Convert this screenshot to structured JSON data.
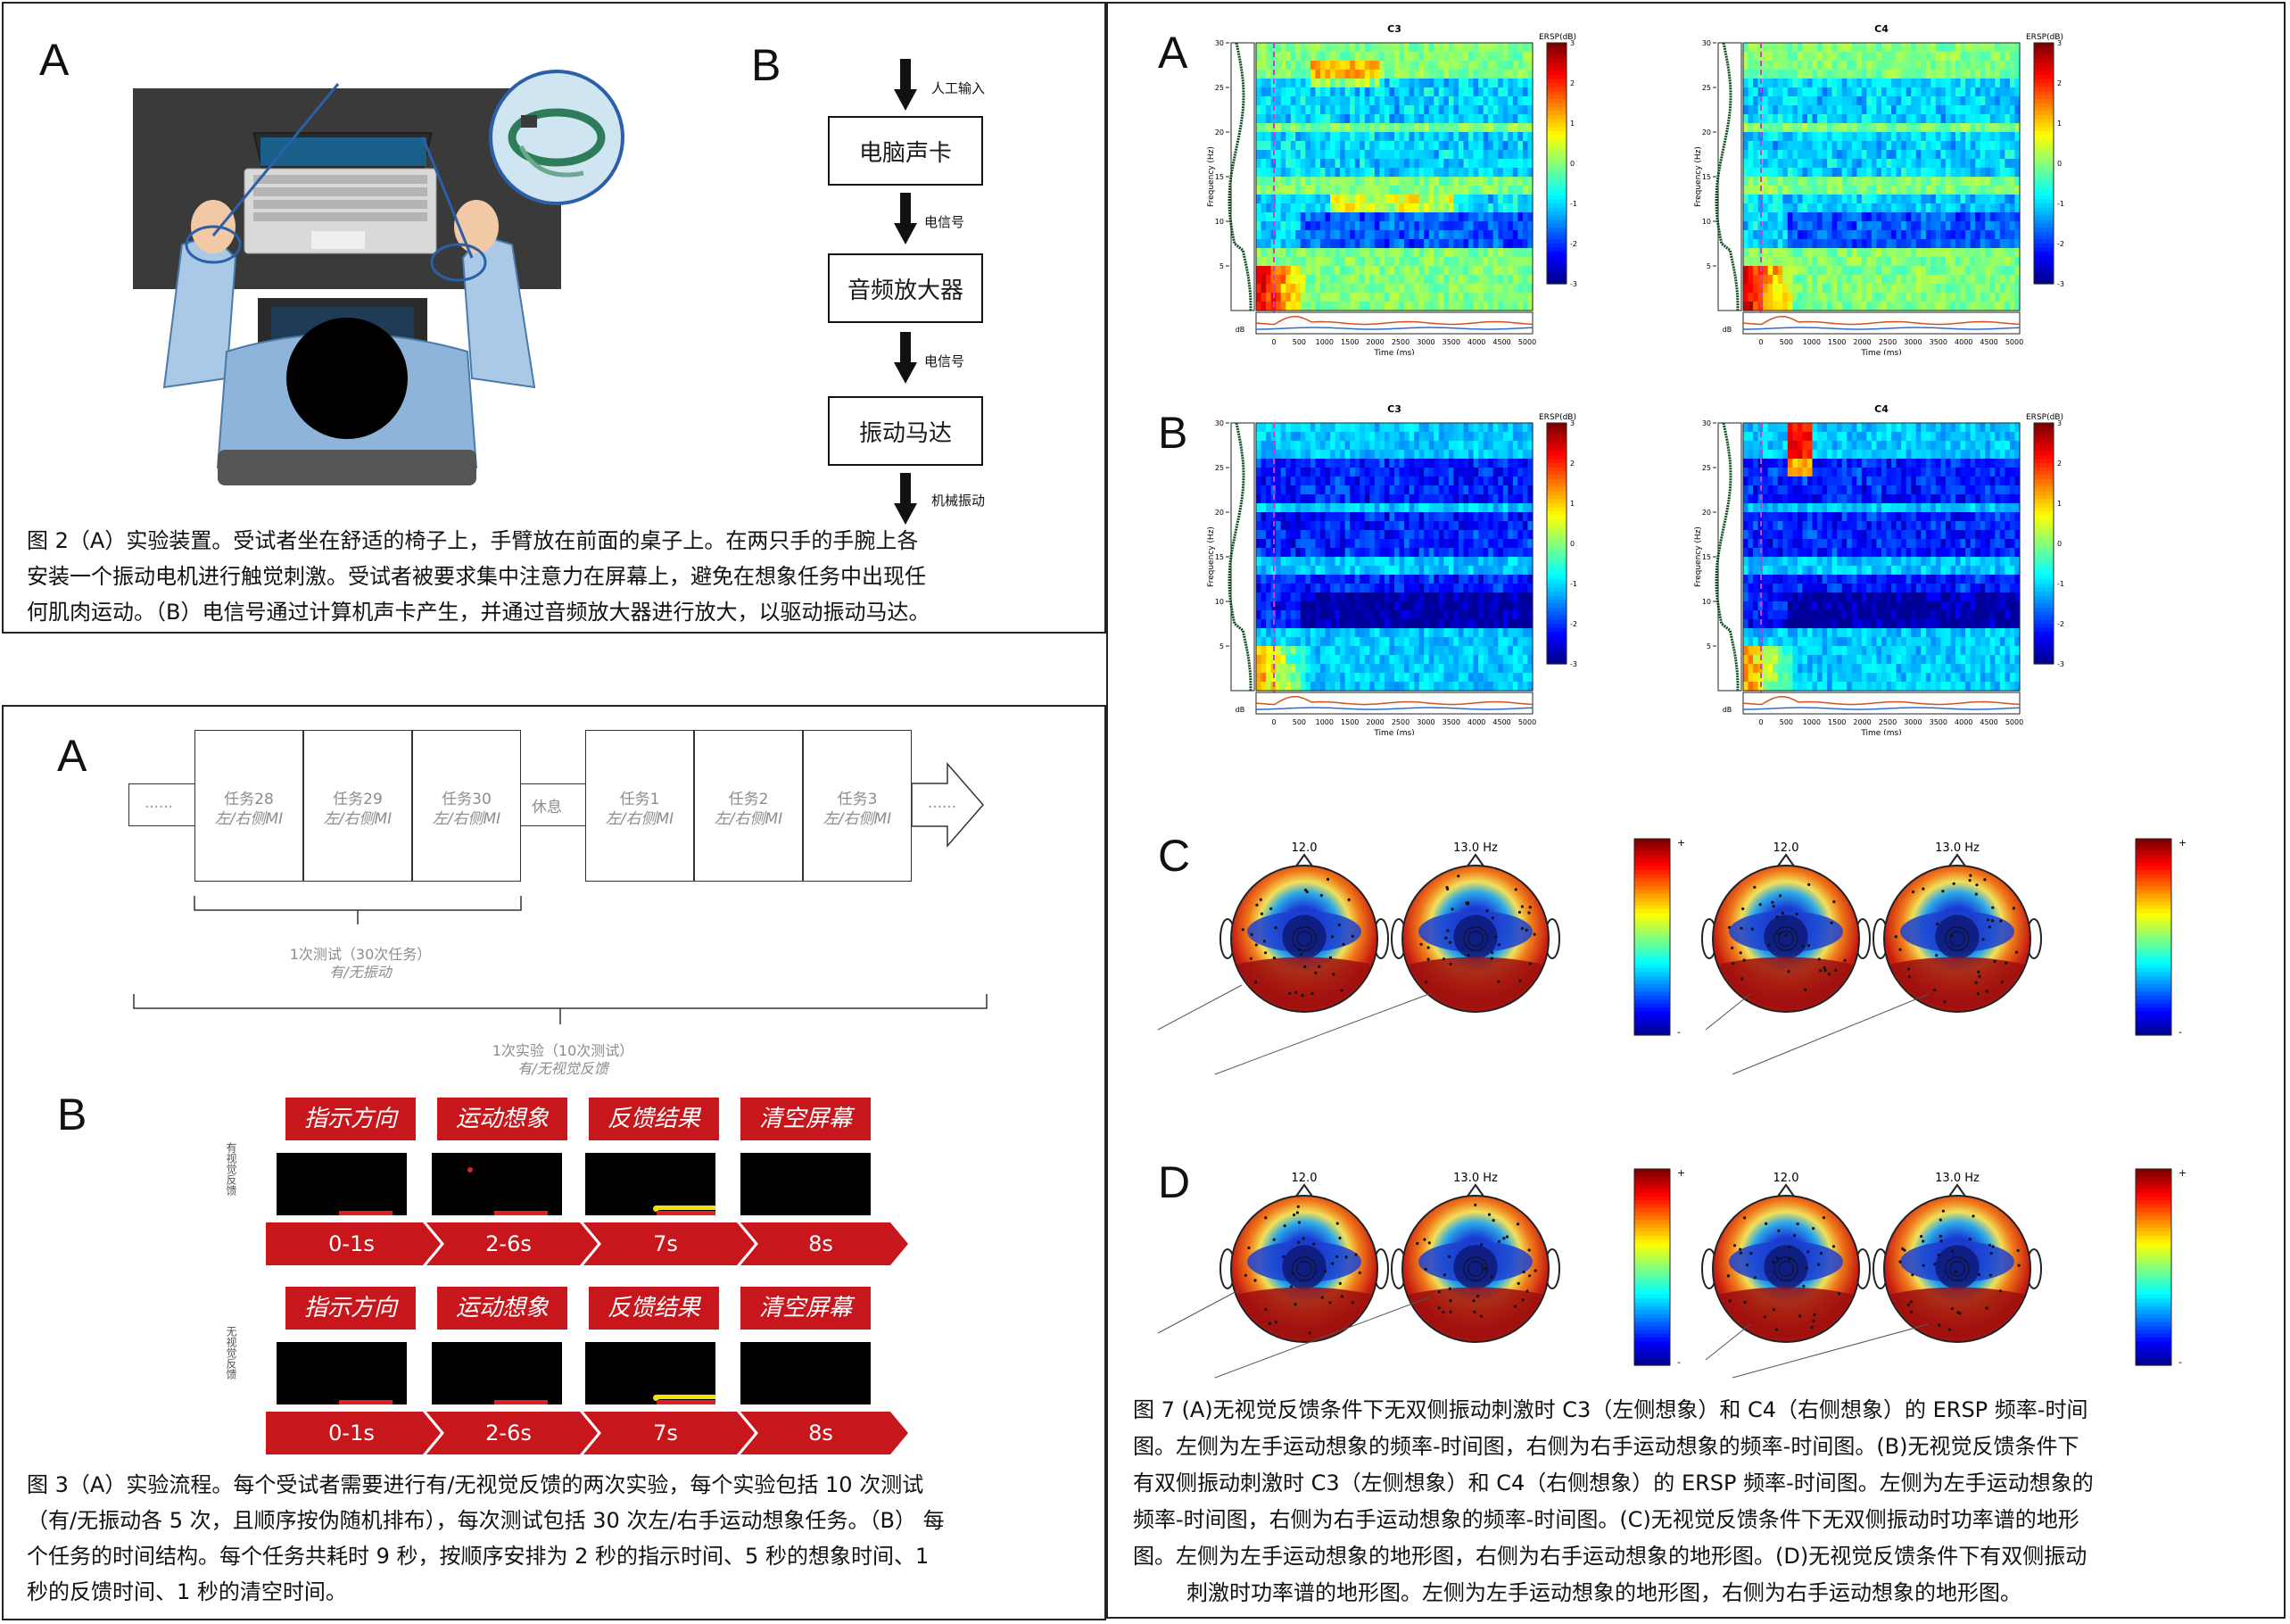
{
  "fig2": {
    "letter_a": "A",
    "letter_b": "B",
    "flow": {
      "top_label": "人工输入",
      "box1": "电脑声卡",
      "label1": "电信号",
      "box2": "音频放大器",
      "label2": "电信号",
      "box3": "振动马达",
      "bottom_label": "机械振动"
    },
    "caption_lines": [
      "图 2（A）实验装置。受试者坐在舒适的椅子上，手臂放在前面的桌子上。在两只手的手腕上各",
      "安装一个振动电机进行触觉刺激。受试者被要求集中注意力在屏幕上，避免在想象任务中出现任",
      "何肌肉运动。（B）电信号通过计算机声卡产生，并通过音频放大器进行放大，以驱动振动马达。"
    ]
  },
  "fig3": {
    "letter_a": "A",
    "letter_b": "B",
    "timeline": {
      "ellipsis_left": "……",
      "tasks_left": [
        {
          "name": "任务28",
          "sub": "左/右侧MI"
        },
        {
          "name": "任务29",
          "sub": "左/右侧MI"
        },
        {
          "name": "任务30",
          "sub": "左/右侧MI"
        }
      ],
      "rest": "休息",
      "tasks_right": [
        {
          "name": "任务1",
          "sub": "左/右侧MI"
        },
        {
          "name": "任务2",
          "sub": "左/右侧MI"
        },
        {
          "name": "任务3",
          "sub": "左/右侧MI"
        }
      ],
      "ellipsis_right": "……",
      "brace1_line1": "1次测试（30次任务）",
      "brace1_line2": "有/无振动",
      "brace2_line1": "1次实验（10次测试）",
      "brace2_line2": "有/无视觉反馈"
    },
    "trial": {
      "labels": [
        "指示方向",
        "运动想象",
        "反馈结果",
        "清空屏幕"
      ],
      "times": [
        "0-1s",
        "2-6s",
        "7s",
        "8s"
      ],
      "row1_side": "有视觉反馈",
      "row2_side": "无视觉反馈"
    },
    "caption_lines": [
      "图 3（A）实验流程。每个受试者需要进行有/无视觉反馈的两次实验，每个实验包括 10 次测试",
      "（有/无振动各 5 次，且顺序按伪随机排布），每次测试包括 30 次左/右手运动想象任务。（B） 每",
      "个任务的时间结构。每个任务共耗时 9 秒，按顺序安排为 2 秒的指示时间、5 秒的想象时间、1",
      "秒的反馈时间、1 秒的清空时间。"
    ]
  },
  "fig7": {
    "letters": [
      "A",
      "B",
      "C",
      "D"
    ],
    "ersp": {
      "ch_left": "C3",
      "ch_right": "C4",
      "cbar_title": "ERSP(dB)",
      "ylabel": "Frequency (Hz)",
      "xlabel": "Time (ms)",
      "db_label": "dB",
      "yticks": [
        "30",
        "25",
        "20",
        "15",
        "10",
        "5"
      ],
      "xticks": [
        "0",
        "500",
        "1000",
        "1500",
        "2000",
        "2500",
        "3000",
        "3500",
        "4000",
        "4500",
        "5000"
      ],
      "cbar_ticks": [
        "3",
        "2",
        "1",
        "0",
        "-1",
        "-2",
        "-3"
      ]
    },
    "topo": {
      "freq_a": "12.0",
      "freq_b": "13.0 Hz",
      "cbar_plus": "+",
      "cbar_minus": "-"
    },
    "caption_lines": [
      "图 7 (A)无视觉反馈条件下无双侧振动刺激时 C3（左侧想象）和 C4（右侧想象）的 ERSP 频率-时间",
      "图。左侧为左手运动想象的频率-时间图，右侧为右手运动想象的频率-时间图。(B)无视觉反馈条件下",
      "有双侧振动刺激时 C3（左侧想象）和 C4（右侧想象）的 ERSP 频率-时间图。左侧为左手运动想象的",
      "频率-时间图，右侧为右手运动想象的频率-时间图。(C)无视觉反馈条件下无双侧振动时功率谱的地形",
      "图。左侧为左手运动想象的地形图，右侧为右手运动想象的地形图。(D)无视觉反馈条件下有双侧振动",
      "刺激时功率谱的地形图。左侧为左手运动想象的地形图，右侧为右手运动想象的地形图。"
    ]
  }
}
